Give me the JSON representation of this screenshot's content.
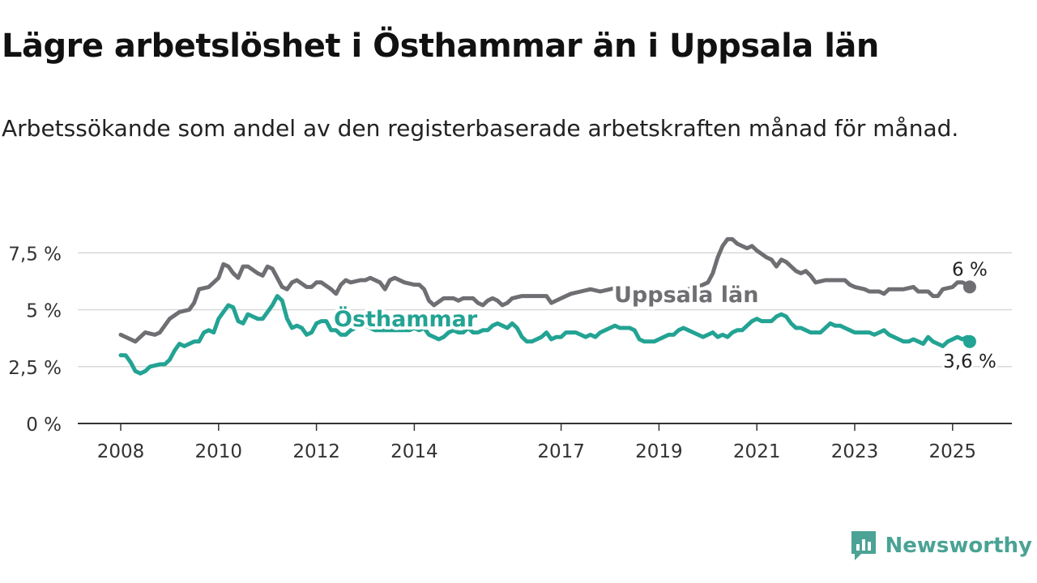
{
  "header": {
    "title": "Lägre arbetslöshet i Östhammar än i Uppsala län",
    "subtitle": "Arbetssökande som andel av den registerbaserade arbetskraften månad för månad."
  },
  "brand": {
    "name": "Newsworthy",
    "color": "#4aa394"
  },
  "chart_data": {
    "type": "line",
    "title": "Lägre arbetslöshet i Östhammar än i Uppsala län",
    "xlabel": "",
    "ylabel": "",
    "ylim": [
      0,
      8.2
    ],
    "xlim": [
      2008,
      2026
    ],
    "grid": true,
    "legend": "inline labels",
    "y_ticks": [
      {
        "value": 0,
        "label": "0 %"
      },
      {
        "value": 2.5,
        "label": "2,5 %"
      },
      {
        "value": 5,
        "label": "5 %"
      },
      {
        "value": 7.5,
        "label": "7,5 %"
      }
    ],
    "x_ticks": [
      {
        "value": 2008,
        "label": "2008"
      },
      {
        "value": 2010,
        "label": "2010"
      },
      {
        "value": 2012,
        "label": "2012"
      },
      {
        "value": 2014,
        "label": "2014"
      },
      {
        "value": 2017,
        "label": "2017"
      },
      {
        "value": 2019,
        "label": "2019"
      },
      {
        "value": 2021,
        "label": "2021"
      },
      {
        "value": 2023,
        "label": "2023"
      },
      {
        "value": 2025,
        "label": "2025"
      }
    ],
    "series": [
      {
        "name": "Uppsala län",
        "color": "#6e6e73",
        "end_label": "6 %",
        "points": [
          [
            2008.0,
            3.9
          ],
          [
            2008.2,
            3.7
          ],
          [
            2008.3,
            3.6
          ],
          [
            2008.5,
            4.0
          ],
          [
            2008.7,
            3.9
          ],
          [
            2008.8,
            4.0
          ],
          [
            2009.0,
            4.6
          ],
          [
            2009.2,
            4.9
          ],
          [
            2009.4,
            5.0
          ],
          [
            2009.5,
            5.3
          ],
          [
            2009.6,
            5.9
          ],
          [
            2009.8,
            6.0
          ],
          [
            2009.9,
            6.2
          ],
          [
            2010.0,
            6.4
          ],
          [
            2010.1,
            7.0
          ],
          [
            2010.2,
            6.9
          ],
          [
            2010.3,
            6.6
          ],
          [
            2010.4,
            6.4
          ],
          [
            2010.5,
            6.9
          ],
          [
            2010.6,
            6.9
          ],
          [
            2010.8,
            6.6
          ],
          [
            2010.9,
            6.5
          ],
          [
            2011.0,
            6.9
          ],
          [
            2011.1,
            6.8
          ],
          [
            2011.3,
            6.0
          ],
          [
            2011.4,
            5.9
          ],
          [
            2011.5,
            6.2
          ],
          [
            2011.6,
            6.3
          ],
          [
            2011.8,
            6.0
          ],
          [
            2011.9,
            6.0
          ],
          [
            2012.0,
            6.2
          ],
          [
            2012.1,
            6.2
          ],
          [
            2012.3,
            5.9
          ],
          [
            2012.4,
            5.7
          ],
          [
            2012.5,
            6.1
          ],
          [
            2012.6,
            6.3
          ],
          [
            2012.7,
            6.2
          ],
          [
            2012.9,
            6.3
          ],
          [
            2013.0,
            6.3
          ],
          [
            2013.1,
            6.4
          ],
          [
            2013.3,
            6.2
          ],
          [
            2013.4,
            5.9
          ],
          [
            2013.5,
            6.3
          ],
          [
            2013.6,
            6.4
          ],
          [
            2013.8,
            6.2
          ],
          [
            2014.0,
            6.1
          ],
          [
            2014.1,
            6.1
          ],
          [
            2014.2,
            5.9
          ],
          [
            2014.3,
            5.4
          ],
          [
            2014.4,
            5.2
          ],
          [
            2014.6,
            5.5
          ],
          [
            2014.8,
            5.5
          ],
          [
            2014.9,
            5.4
          ],
          [
            2015.0,
            5.5
          ],
          [
            2015.2,
            5.5
          ],
          [
            2015.3,
            5.3
          ],
          [
            2015.4,
            5.2
          ],
          [
            2015.5,
            5.4
          ],
          [
            2015.6,
            5.5
          ],
          [
            2015.7,
            5.4
          ],
          [
            2015.8,
            5.2
          ],
          [
            2015.9,
            5.3
          ],
          [
            2016.0,
            5.5
          ],
          [
            2016.2,
            5.6
          ],
          [
            2016.5,
            5.6
          ],
          [
            2016.7,
            5.6
          ],
          [
            2016.8,
            5.3
          ],
          [
            2017.0,
            5.5
          ],
          [
            2017.2,
            5.7
          ],
          [
            2017.4,
            5.8
          ],
          [
            2017.6,
            5.9
          ],
          [
            2017.8,
            5.8
          ],
          [
            2018.0,
            5.9
          ],
          [
            2018.2,
            6.0
          ],
          [
            2018.4,
            5.9
          ],
          [
            2018.6,
            5.7
          ],
          [
            2018.8,
            5.8
          ],
          [
            2019.0,
            5.8
          ],
          [
            2019.2,
            5.8
          ],
          [
            2019.4,
            5.8
          ],
          [
            2019.6,
            5.9
          ],
          [
            2019.8,
            6.0
          ],
          [
            2020.0,
            6.2
          ],
          [
            2020.1,
            6.6
          ],
          [
            2020.2,
            7.3
          ],
          [
            2020.3,
            7.8
          ],
          [
            2020.4,
            8.1
          ],
          [
            2020.5,
            8.1
          ],
          [
            2020.6,
            7.9
          ],
          [
            2020.8,
            7.7
          ],
          [
            2020.9,
            7.8
          ],
          [
            2021.0,
            7.6
          ],
          [
            2021.2,
            7.3
          ],
          [
            2021.3,
            7.2
          ],
          [
            2021.4,
            6.9
          ],
          [
            2021.5,
            7.2
          ],
          [
            2021.6,
            7.1
          ],
          [
            2021.8,
            6.7
          ],
          [
            2021.9,
            6.6
          ],
          [
            2022.0,
            6.7
          ],
          [
            2022.1,
            6.5
          ],
          [
            2022.2,
            6.2
          ],
          [
            2022.4,
            6.3
          ],
          [
            2022.6,
            6.3
          ],
          [
            2022.8,
            6.3
          ],
          [
            2022.9,
            6.1
          ],
          [
            2023.0,
            6.0
          ],
          [
            2023.2,
            5.9
          ],
          [
            2023.3,
            5.8
          ],
          [
            2023.5,
            5.8
          ],
          [
            2023.6,
            5.7
          ],
          [
            2023.7,
            5.9
          ],
          [
            2023.9,
            5.9
          ],
          [
            2024.0,
            5.9
          ],
          [
            2024.2,
            6.0
          ],
          [
            2024.3,
            5.8
          ],
          [
            2024.5,
            5.8
          ],
          [
            2024.6,
            5.6
          ],
          [
            2024.7,
            5.6
          ],
          [
            2024.8,
            5.9
          ],
          [
            2025.0,
            6.0
          ],
          [
            2025.1,
            6.2
          ],
          [
            2025.2,
            6.2
          ],
          [
            2025.3,
            6.1
          ],
          [
            2025.35,
            6.0
          ]
        ]
      },
      {
        "name": "Östhammar",
        "color": "#23a393",
        "end_label": "3,6 %",
        "points": [
          [
            2008.0,
            3.0
          ],
          [
            2008.1,
            3.0
          ],
          [
            2008.2,
            2.7
          ],
          [
            2008.3,
            2.3
          ],
          [
            2008.4,
            2.2
          ],
          [
            2008.5,
            2.3
          ],
          [
            2008.6,
            2.5
          ],
          [
            2008.8,
            2.6
          ],
          [
            2008.9,
            2.6
          ],
          [
            2009.0,
            2.8
          ],
          [
            2009.1,
            3.2
          ],
          [
            2009.2,
            3.5
          ],
          [
            2009.3,
            3.4
          ],
          [
            2009.4,
            3.5
          ],
          [
            2009.5,
            3.6
          ],
          [
            2009.6,
            3.6
          ],
          [
            2009.7,
            4.0
          ],
          [
            2009.8,
            4.1
          ],
          [
            2009.9,
            4.0
          ],
          [
            2010.0,
            4.6
          ],
          [
            2010.1,
            4.9
          ],
          [
            2010.2,
            5.2
          ],
          [
            2010.3,
            5.1
          ],
          [
            2010.4,
            4.5
          ],
          [
            2010.5,
            4.4
          ],
          [
            2010.6,
            4.8
          ],
          [
            2010.8,
            4.6
          ],
          [
            2010.9,
            4.6
          ],
          [
            2011.0,
            4.9
          ],
          [
            2011.1,
            5.2
          ],
          [
            2011.2,
            5.6
          ],
          [
            2011.3,
            5.4
          ],
          [
            2011.4,
            4.6
          ],
          [
            2011.5,
            4.2
          ],
          [
            2011.6,
            4.3
          ],
          [
            2011.7,
            4.2
          ],
          [
            2011.8,
            3.9
          ],
          [
            2011.9,
            4.0
          ],
          [
            2012.0,
            4.4
          ],
          [
            2012.1,
            4.5
          ],
          [
            2012.2,
            4.5
          ],
          [
            2012.3,
            4.1
          ],
          [
            2012.4,
            4.1
          ],
          [
            2012.5,
            3.9
          ],
          [
            2012.6,
            3.9
          ],
          [
            2012.7,
            4.1
          ],
          [
            2012.8,
            4.2
          ],
          [
            2012.9,
            4.4
          ],
          [
            2013.0,
            4.3
          ],
          [
            2013.1,
            4.2
          ],
          [
            2013.2,
            4.1
          ],
          [
            2013.3,
            4.1
          ],
          [
            2013.5,
            4.1
          ],
          [
            2013.7,
            4.1
          ],
          [
            2013.9,
            4.1
          ],
          [
            2014.0,
            4.2
          ],
          [
            2014.1,
            4.1
          ],
          [
            2014.2,
            4.2
          ],
          [
            2014.3,
            3.9
          ],
          [
            2014.4,
            3.8
          ],
          [
            2014.5,
            3.7
          ],
          [
            2014.6,
            3.8
          ],
          [
            2014.7,
            4.0
          ],
          [
            2014.8,
            4.1
          ],
          [
            2014.9,
            4.0
          ],
          [
            2015.0,
            4.0
          ],
          [
            2015.1,
            4.2
          ],
          [
            2015.2,
            4.0
          ],
          [
            2015.3,
            4.0
          ],
          [
            2015.4,
            4.1
          ],
          [
            2015.5,
            4.1
          ],
          [
            2015.6,
            4.3
          ],
          [
            2015.7,
            4.4
          ],
          [
            2015.8,
            4.3
          ],
          [
            2015.9,
            4.2
          ],
          [
            2016.0,
            4.4
          ],
          [
            2016.1,
            4.2
          ],
          [
            2016.2,
            3.8
          ],
          [
            2016.3,
            3.6
          ],
          [
            2016.4,
            3.6
          ],
          [
            2016.5,
            3.7
          ],
          [
            2016.6,
            3.8
          ],
          [
            2016.7,
            4.0
          ],
          [
            2016.8,
            3.7
          ],
          [
            2016.9,
            3.8
          ],
          [
            2017.0,
            3.8
          ],
          [
            2017.1,
            4.0
          ],
          [
            2017.3,
            4.0
          ],
          [
            2017.4,
            3.9
          ],
          [
            2017.5,
            3.8
          ],
          [
            2017.6,
            3.9
          ],
          [
            2017.7,
            3.8
          ],
          [
            2017.8,
            4.0
          ],
          [
            2017.9,
            4.1
          ],
          [
            2018.0,
            4.2
          ],
          [
            2018.1,
            4.3
          ],
          [
            2018.2,
            4.2
          ],
          [
            2018.4,
            4.2
          ],
          [
            2018.5,
            4.1
          ],
          [
            2018.6,
            3.7
          ],
          [
            2018.7,
            3.6
          ],
          [
            2018.8,
            3.6
          ],
          [
            2018.9,
            3.6
          ],
          [
            2019.0,
            3.7
          ],
          [
            2019.1,
            3.8
          ],
          [
            2019.2,
            3.9
          ],
          [
            2019.3,
            3.9
          ],
          [
            2019.4,
            4.1
          ],
          [
            2019.5,
            4.2
          ],
          [
            2019.6,
            4.1
          ],
          [
            2019.7,
            4.0
          ],
          [
            2019.8,
            3.9
          ],
          [
            2019.9,
            3.8
          ],
          [
            2020.0,
            3.9
          ],
          [
            2020.1,
            4.0
          ],
          [
            2020.2,
            3.8
          ],
          [
            2020.3,
            3.9
          ],
          [
            2020.4,
            3.8
          ],
          [
            2020.5,
            4.0
          ],
          [
            2020.6,
            4.1
          ],
          [
            2020.7,
            4.1
          ],
          [
            2020.8,
            4.3
          ],
          [
            2020.9,
            4.5
          ],
          [
            2021.0,
            4.6
          ],
          [
            2021.1,
            4.5
          ],
          [
            2021.2,
            4.5
          ],
          [
            2021.3,
            4.5
          ],
          [
            2021.4,
            4.7
          ],
          [
            2021.5,
            4.8
          ],
          [
            2021.6,
            4.7
          ],
          [
            2021.7,
            4.4
          ],
          [
            2021.8,
            4.2
          ],
          [
            2021.9,
            4.2
          ],
          [
            2022.0,
            4.1
          ],
          [
            2022.1,
            4.0
          ],
          [
            2022.2,
            4.0
          ],
          [
            2022.3,
            4.0
          ],
          [
            2022.4,
            4.2
          ],
          [
            2022.5,
            4.4
          ],
          [
            2022.6,
            4.3
          ],
          [
            2022.7,
            4.3
          ],
          [
            2022.8,
            4.2
          ],
          [
            2022.9,
            4.1
          ],
          [
            2023.0,
            4.0
          ],
          [
            2023.2,
            4.0
          ],
          [
            2023.3,
            4.0
          ],
          [
            2023.4,
            3.9
          ],
          [
            2023.5,
            4.0
          ],
          [
            2023.6,
            4.1
          ],
          [
            2023.7,
            3.9
          ],
          [
            2023.8,
            3.8
          ],
          [
            2023.9,
            3.7
          ],
          [
            2024.0,
            3.6
          ],
          [
            2024.1,
            3.6
          ],
          [
            2024.2,
            3.7
          ],
          [
            2024.3,
            3.6
          ],
          [
            2024.4,
            3.5
          ],
          [
            2024.5,
            3.8
          ],
          [
            2024.6,
            3.6
          ],
          [
            2024.7,
            3.5
          ],
          [
            2024.8,
            3.4
          ],
          [
            2024.9,
            3.6
          ],
          [
            2025.0,
            3.7
          ],
          [
            2025.1,
            3.8
          ],
          [
            2025.2,
            3.7
          ],
          [
            2025.3,
            3.8
          ],
          [
            2025.35,
            3.6
          ]
        ]
      }
    ]
  }
}
